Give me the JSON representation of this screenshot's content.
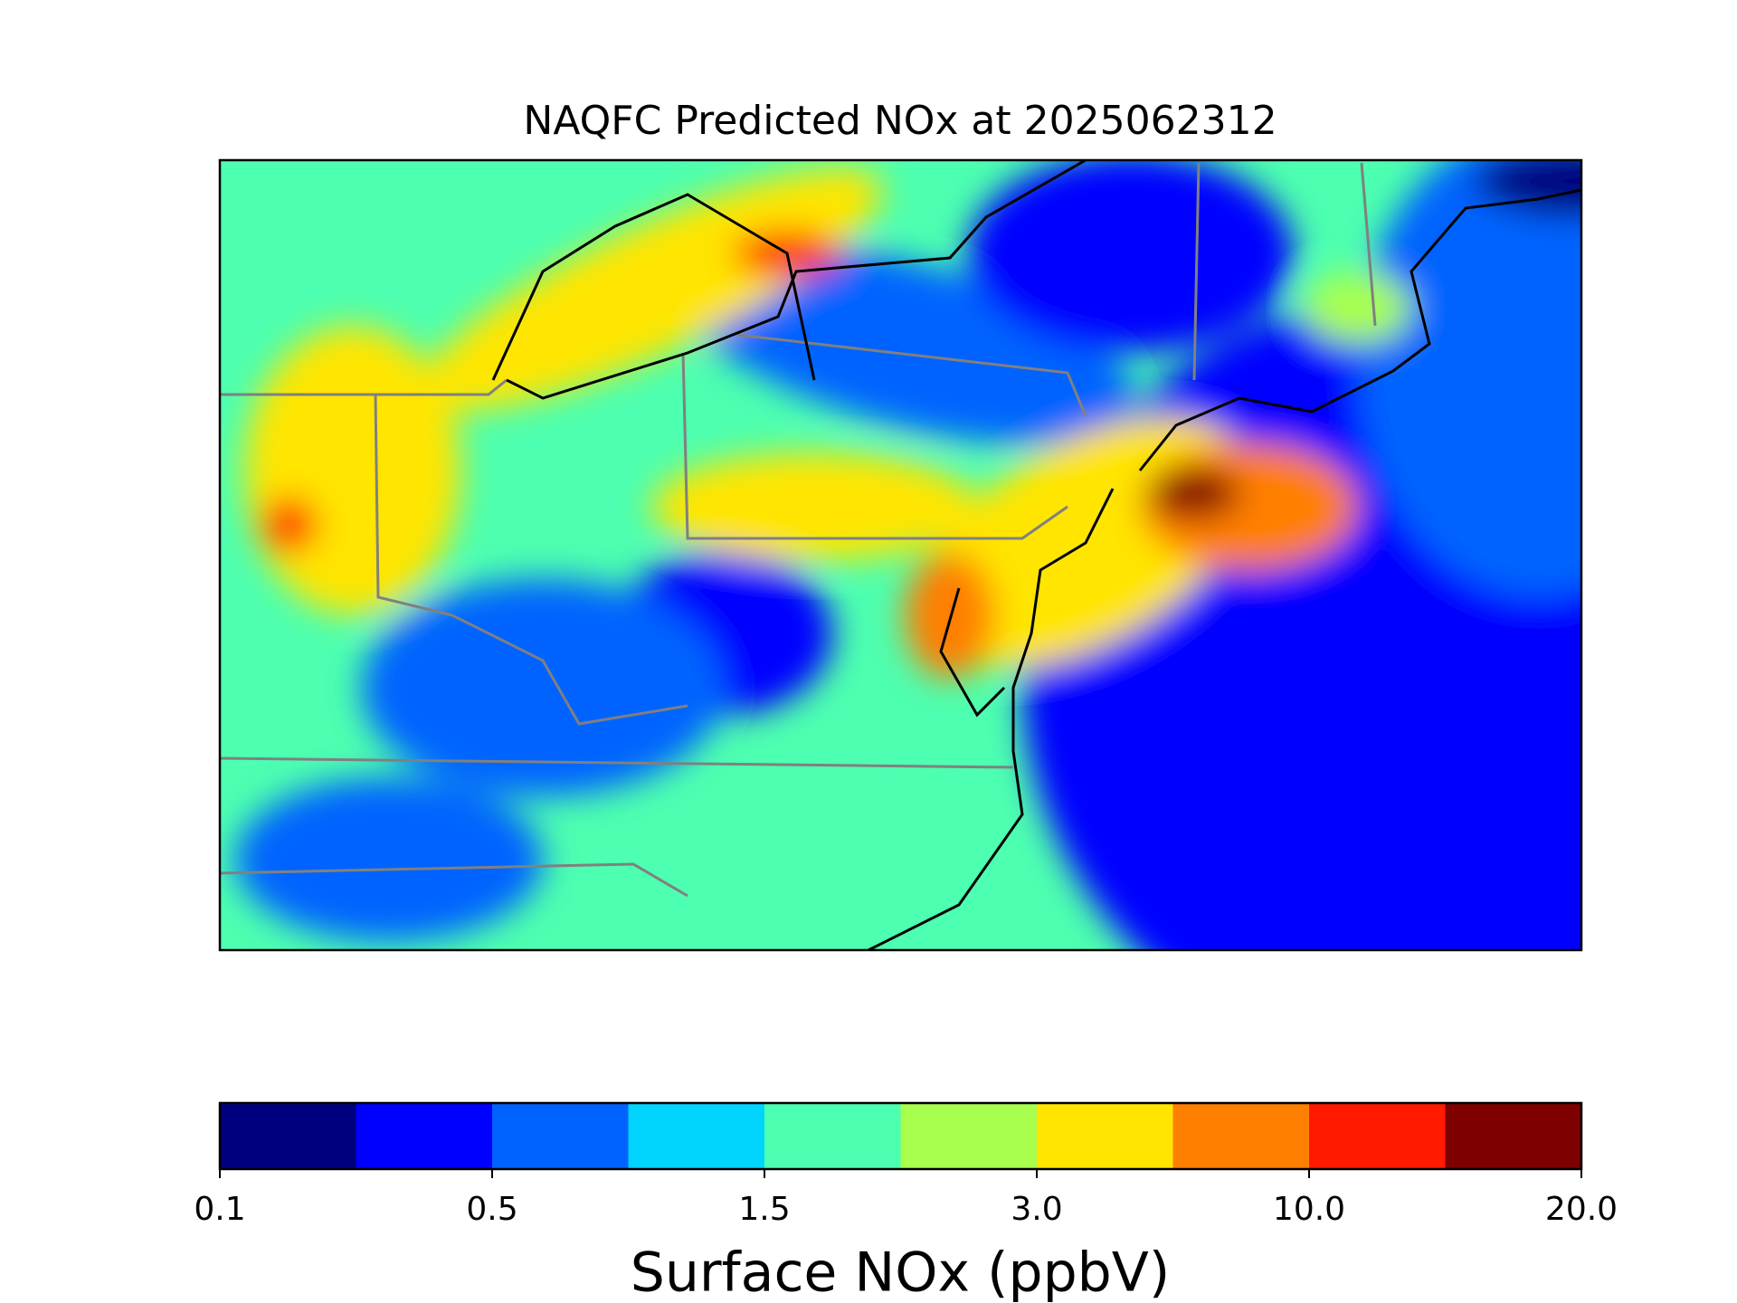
{
  "title": "NAQFC Predicted NOx at 2025062312",
  "colorbar": {
    "label": "Surface NOx (ppbV)",
    "colors": [
      "#00007f",
      "#0000ff",
      "#0063ff",
      "#00d4ff",
      "#4dffb0",
      "#a8ff4d",
      "#ffe500",
      "#ff7f00",
      "#ff1a00",
      "#7f0000"
    ],
    "ticks": [
      0.1,
      0.5,
      1.5,
      {
        "value": 3,
        "label": "3.0"
      },
      {
        "value": 10,
        "label": "10.0"
      },
      {
        "value": 20,
        "label": "20.0"
      }
    ]
  }
}
